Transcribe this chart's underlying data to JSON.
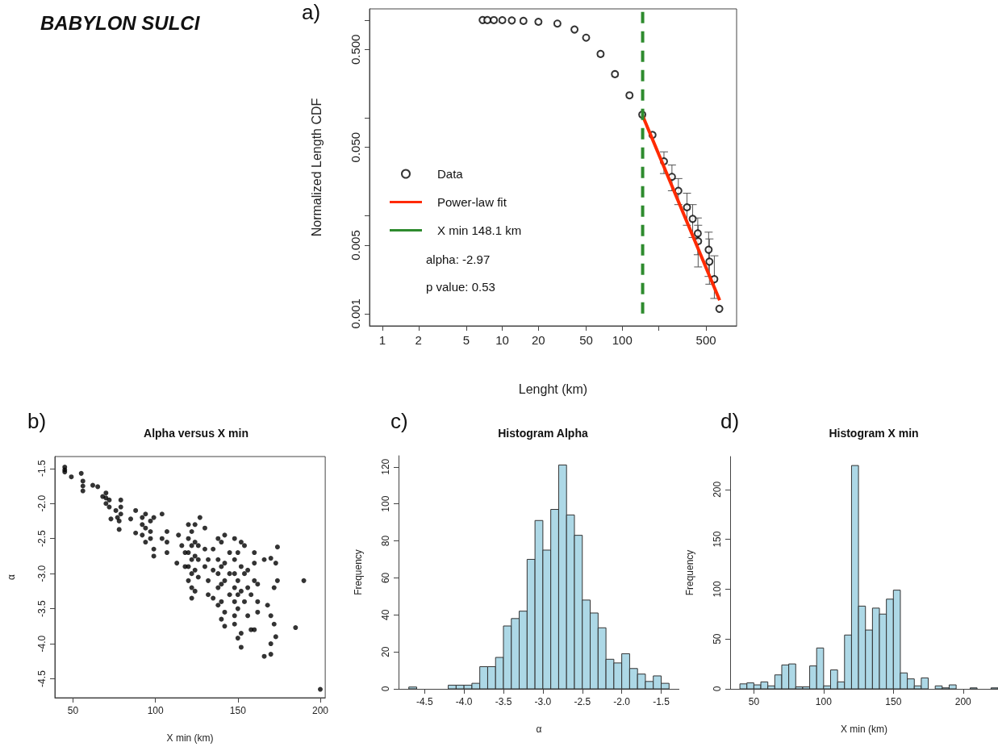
{
  "chart_data": [
    {
      "type": "scatter",
      "xlabel": "Lenght (km)",
      "ylabel": "Normalized Length CDF",
      "annotations": [
        "BABYLON SULCI",
        "a)",
        "alpha: -2.97",
        "p value: 0.53"
      ],
      "log": "xy",
      "xlim": [
        0.78,
        900
      ],
      "ylim": [
        0.00075,
        1.3
      ],
      "xticks": [
        1,
        2,
        5,
        10,
        20,
        50,
        100,
        {
          "value": 200,
          "label": null
        },
        500
      ],
      "yticks": [
        {
          "value": 0.001,
          "label": "0.001"
        },
        {
          "value": 0.005,
          "label": "0.005"
        },
        {
          "value": 0.01,
          "label": null
        },
        {
          "value": 0.05,
          "label": "0.050"
        },
        {
          "value": 0.1,
          "label": null
        },
        {
          "value": 0.5,
          "label": "0.500"
        },
        {
          "value": 1,
          "label": null
        }
      ],
      "legend": "left",
      "grid": false,
      "series": [
        {
          "name": "Data",
          "marker": "circle",
          "color": "#000000",
          "x": [
            6.85,
            7.5,
            8.5,
            10,
            12,
            15,
            20,
            28.8,
            40,
            50,
            66,
            87,
            115,
            147,
            179,
            223,
            260,
            294,
            347,
            387,
            427,
            430,
            526,
            534,
            587,
            646
          ],
          "values": [
            1.0,
            0.999,
            0.998,
            0.997,
            0.99,
            0.98,
            0.96,
            0.92,
            0.8,
            0.66,
            0.45,
            0.28,
            0.17,
            0.108,
            0.067,
            0.036,
            0.025,
            0.018,
            0.0122,
            0.0093,
            0.0066,
            0.0055,
            0.0045,
            0.0034,
            0.00225,
            0.00112
          ],
          "errors": [
            null,
            null,
            null,
            null,
            null,
            null,
            null,
            null,
            null,
            null,
            null,
            null,
            null,
            null,
            null,
            [
              0.027,
              0.045
            ],
            [
              0.018,
              0.033
            ],
            [
              0.013,
              0.024
            ],
            [
              0.008,
              0.017
            ],
            [
              0.006,
              0.013
            ],
            [
              0.004,
              0.0095
            ],
            [
              0.003,
              0.008
            ],
            [
              0.0024,
              0.0068
            ],
            [
              0.002,
              0.0058
            ],
            [
              0.00143,
              0.0039
            ],
            null
          ]
        },
        {
          "name": "Power-law fit",
          "type": "line",
          "marker": "none",
          "color": "#ff2a00",
          "x": [
            148.1,
            650
          ],
          "values": [
            0.105,
            0.00137
          ]
        },
        {
          "name": "X min 148.1 km",
          "type": "line",
          "marker": "none",
          "line_style": "dashed",
          "color": "#2e8b2e",
          "x": [
            148.1,
            148.1
          ],
          "values": [
            0.001,
            1.3
          ]
        }
      ]
    },
    {
      "type": "scatter",
      "title": "Alpha versus X min",
      "xlabel": "X min (km)",
      "ylabel": "α",
      "annotations": [
        "b)"
      ],
      "xlim": [
        39,
        203
      ],
      "ylim": [
        -4.77,
        -1.33
      ],
      "xticks": [
        50,
        100,
        150,
        200
      ],
      "yticks": [
        {
          "value": -4.5,
          "label": "-4.5"
        },
        {
          "value": -4,
          "label": "-4.0"
        },
        {
          "value": -3.5,
          "label": "-3.5"
        },
        {
          "value": -3,
          "label": "-3.0"
        },
        {
          "value": -2.5,
          "label": "-2.5"
        },
        {
          "value": -2,
          "label": "-2.0"
        },
        {
          "value": -1.5,
          "label": "-1.5"
        }
      ],
      "marker": "circle",
      "color": "#000000",
      "grid": false,
      "x": [
        45,
        45,
        45,
        49,
        55,
        56,
        56,
        56,
        62,
        65,
        68,
        70,
        70,
        70,
        72,
        72,
        73,
        76,
        77,
        78,
        78,
        79,
        79,
        79,
        85,
        88,
        88,
        92,
        92,
        92,
        94,
        94,
        94,
        97,
        97,
        97,
        99,
        99,
        99,
        104,
        104,
        107,
        107,
        107,
        113,
        114,
        116,
        118,
        118,
        120,
        120,
        120,
        120,
        120,
        122,
        122,
        122,
        122,
        122,
        122,
        124,
        124,
        124,
        124,
        124,
        126,
        126,
        126,
        127,
        130,
        130,
        130,
        132,
        132,
        132,
        135,
        135,
        135,
        138,
        138,
        138,
        138,
        138,
        140,
        140,
        140,
        140,
        140,
        142,
        142,
        142,
        142,
        142,
        145,
        145,
        145,
        148,
        148,
        148,
        148,
        148,
        148,
        148,
        150,
        150,
        150,
        150,
        150,
        152,
        152,
        152,
        152,
        152,
        154,
        154,
        154,
        156,
        156,
        156,
        158,
        158,
        160,
        160,
        160,
        160,
        162,
        162,
        162,
        166,
        166,
        168,
        170,
        170,
        170,
        170,
        172,
        172,
        173,
        173,
        174,
        174,
        185,
        190,
        200
      ],
      "values": [
        -1.48,
        -1.52,
        -1.55,
        -1.62,
        -1.57,
        -1.68,
        -1.75,
        -1.82,
        -1.74,
        -1.76,
        -1.9,
        -1.85,
        -1.92,
        -2.0,
        -1.95,
        -2.05,
        -2.22,
        -2.1,
        -2.2,
        -2.25,
        -2.37,
        -1.95,
        -2.05,
        -2.15,
        -2.22,
        -2.1,
        -2.42,
        -2.2,
        -2.3,
        -2.45,
        -2.15,
        -2.35,
        -2.55,
        -2.25,
        -2.4,
        -2.5,
        -2.2,
        -2.65,
        -2.75,
        -2.15,
        -2.5,
        -2.4,
        -2.55,
        -2.7,
        -2.85,
        -2.45,
        -2.6,
        -2.7,
        -2.9,
        -2.3,
        -2.5,
        -2.7,
        -2.9,
        -3.1,
        -2.4,
        -2.6,
        -2.8,
        -3.0,
        -3.2,
        -3.35,
        -2.3,
        -2.55,
        -2.75,
        -2.95,
        -3.25,
        -2.6,
        -2.8,
        -3.05,
        -2.2,
        -2.35,
        -2.65,
        -2.9,
        -2.8,
        -3.1,
        -3.3,
        -2.65,
        -2.95,
        -3.35,
        -2.5,
        -2.8,
        -3.0,
        -3.2,
        -3.45,
        -2.55,
        -2.9,
        -3.15,
        -3.4,
        -3.65,
        -2.45,
        -2.85,
        -3.1,
        -3.55,
        -3.75,
        -2.7,
        -3.0,
        -3.3,
        -2.5,
        -2.8,
        -3.0,
        -3.2,
        -3.4,
        -3.6,
        -3.72,
        -2.7,
        -3.1,
        -3.3,
        -3.5,
        -3.92,
        -2.55,
        -2.9,
        -3.25,
        -3.85,
        -4.05,
        -2.6,
        -3.0,
        -3.4,
        -2.95,
        -3.2,
        -3.6,
        -3.3,
        -3.8,
        -2.7,
        -2.85,
        -3.1,
        -3.8,
        -3.15,
        -3.4,
        -3.55,
        -2.8,
        -4.18,
        -3.45,
        -2.78,
        -3.6,
        -4.0,
        -4.15,
        -3.2,
        -3.72,
        -2.85,
        -3.9,
        -2.62,
        -3.1,
        -3.77,
        -3.1,
        -4.65
      ]
    },
    {
      "type": "histogram",
      "title": "Histogram Alpha",
      "xlabel": "α",
      "ylabel": "Frequency",
      "annotations": [
        "c)"
      ],
      "color": "#add8e6",
      "grid": false,
      "bins": [
        -4.7,
        -4.6,
        -4.5,
        -4.4,
        -4.3,
        -4.2,
        -4.1,
        -4.0,
        -3.9,
        -3.8,
        -3.7,
        -3.6,
        -3.5,
        -3.4,
        -3.3,
        -3.2,
        -3.1,
        -3.0,
        -2.9,
        -2.8,
        -2.7,
        -2.6,
        -2.5,
        -2.4,
        -2.3,
        -2.2,
        -2.1,
        -2.0,
        -1.9,
        -1.8,
        -1.7,
        -1.6,
        -1.5,
        -1.4
      ],
      "values": [
        1,
        0,
        0,
        0,
        0,
        2,
        2,
        2,
        3,
        12,
        12,
        17,
        34,
        38,
        42,
        70,
        91,
        75,
        97,
        121,
        94,
        83,
        48,
        41,
        33,
        16,
        14,
        19,
        11,
        8,
        4,
        7,
        3
      ],
      "xlim": [
        -4.83,
        -1.27
      ],
      "ylim": [
        0,
        126
      ],
      "xticks": [
        {
          "value": -4.5,
          "label": "-4.5"
        },
        {
          "value": -4,
          "label": "-4.0"
        },
        {
          "value": -3.5,
          "label": "-3.5"
        },
        {
          "value": -3,
          "label": "-3.0"
        },
        {
          "value": -2.5,
          "label": "-2.5"
        },
        {
          "value": -2,
          "label": "-2.0"
        },
        {
          "value": -1.5,
          "label": "-1.5"
        }
      ],
      "yticks": [
        0,
        20,
        40,
        60,
        80,
        100,
        120
      ]
    },
    {
      "type": "histogram",
      "title": "Histogram X min",
      "xlabel": "X min (km)",
      "ylabel": "Frequency",
      "annotations": [
        "d)"
      ],
      "color": "#add8e6",
      "grid": false,
      "bins": [
        40,
        45,
        50,
        55,
        60,
        65,
        70,
        75,
        80,
        85,
        90,
        95,
        100,
        105,
        110,
        115,
        120,
        125,
        130,
        135,
        140,
        145,
        150,
        155,
        160,
        165,
        170,
        175,
        180,
        185,
        190,
        195,
        200,
        205,
        210,
        215,
        220,
        225
      ],
      "values": [
        5,
        6,
        4,
        7,
        3,
        14,
        24,
        25,
        2,
        2,
        23,
        41,
        3,
        19,
        7,
        54,
        224,
        83,
        59,
        81,
        75,
        90,
        99,
        16,
        10,
        3,
        11,
        0,
        3,
        1,
        4,
        0,
        0,
        1,
        0,
        0,
        1
      ],
      "xlim": [
        33,
        225
      ],
      "ylim": [
        0,
        233
      ],
      "xticks": [
        50,
        100,
        150,
        200
      ],
      "yticks": [
        0,
        50,
        100,
        150,
        200
      ]
    }
  ]
}
